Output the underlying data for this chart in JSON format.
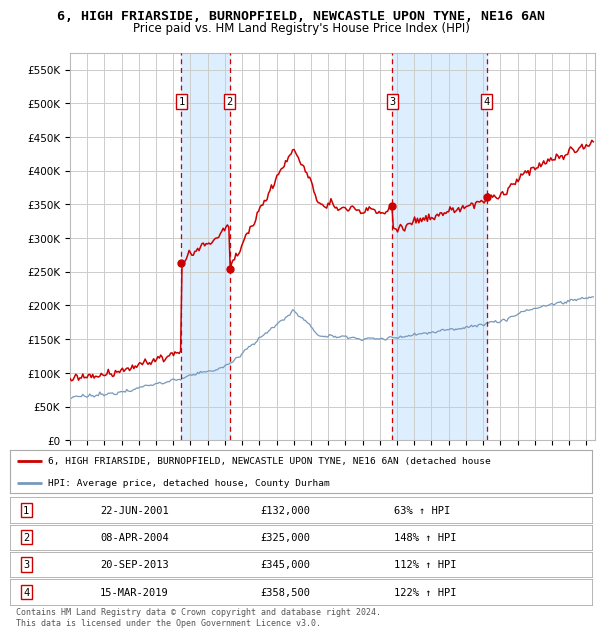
{
  "title": "6, HIGH FRIARSIDE, BURNOPFIELD, NEWCASTLE UPON TYNE, NE16 6AN",
  "subtitle": "Price paid vs. HM Land Registry's House Price Index (HPI)",
  "ylim": [
    0,
    575000
  ],
  "yticks": [
    0,
    50000,
    100000,
    150000,
    200000,
    250000,
    300000,
    350000,
    400000,
    450000,
    500000,
    550000
  ],
  "ytick_labels": [
    "£0",
    "£50K",
    "£100K",
    "£150K",
    "£200K",
    "£250K",
    "£300K",
    "£350K",
    "£400K",
    "£450K",
    "£500K",
    "£550K"
  ],
  "xlim_start": 1995.0,
  "xlim_end": 2025.5,
  "sales": [
    {
      "num": 1,
      "year": 2001.47,
      "price": 132000,
      "label": "1",
      "date_str": "22-JUN-2001",
      "price_str": "£132,000",
      "hpi_str": "63% ↑ HPI"
    },
    {
      "num": 2,
      "year": 2004.27,
      "price": 325000,
      "label": "2",
      "date_str": "08-APR-2004",
      "price_str": "£325,000",
      "hpi_str": "148% ↑ HPI"
    },
    {
      "num": 3,
      "year": 2013.72,
      "price": 345000,
      "label": "3",
      "date_str": "20-SEP-2013",
      "price_str": "£345,000",
      "hpi_str": "112% ↑ HPI"
    },
    {
      "num": 4,
      "year": 2019.2,
      "price": 358500,
      "label": "4",
      "date_str": "15-MAR-2019",
      "price_str": "£358,500",
      "hpi_str": "122% ↑ HPI"
    }
  ],
  "red_color": "#cc0000",
  "blue_color": "#7799bb",
  "background_color": "#ffffff",
  "grid_color": "#cccccc",
  "shade_color": "#ddeeff",
  "legend_line1": "6, HIGH FRIARSIDE, BURNOPFIELD, NEWCASTLE UPON TYNE, NE16 6AN (detached house",
  "legend_line2": "HPI: Average price, detached house, County Durham",
  "footer": "Contains HM Land Registry data © Crown copyright and database right 2024.\nThis data is licensed under the Open Government Licence v3.0.",
  "title_fontsize": 9.5,
  "subtitle_fontsize": 8.5
}
